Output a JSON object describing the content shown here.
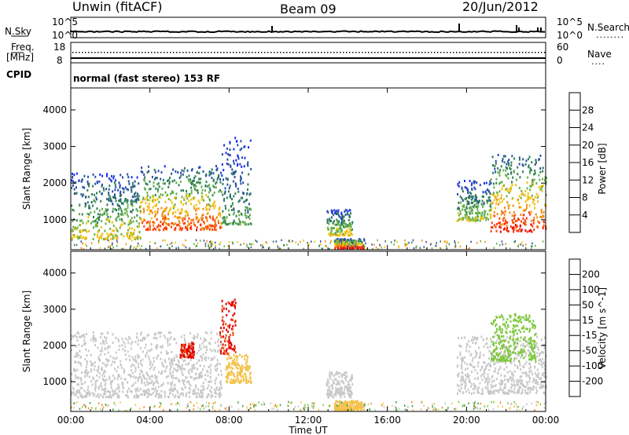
{
  "header": {
    "radar": "Unwin (fitACF)",
    "beam": "Beam 09",
    "date": "20/Jun/2012"
  },
  "top_panel": {
    "left_label": "N.Sky",
    "left_top_tick": "10^5",
    "left_bottom_tick": "10^0",
    "right_label": "N.Search",
    "right_top_tick": "10^5",
    "right_bottom_tick": "10^0",
    "right_legend_mark": "........"
  },
  "freq_panel": {
    "label_line1": "Freq.",
    "label_line2": "[MHz]",
    "left_top_tick": "18",
    "left_bottom_tick": "8",
    "right_label": "Nave",
    "right_top_tick": "60",
    "right_bottom_tick": "0",
    "right_legend_mark": "...."
  },
  "cpid_panel": {
    "label": "CPID",
    "mode": "normal (fast stereo) 153 RF"
  },
  "x_axis": {
    "title": "Time UT",
    "ticks": [
      "00:00",
      "04:00",
      "08:00",
      "12:00",
      "16:00",
      "20:00",
      "00:00"
    ]
  },
  "colors": {
    "power_scale": [
      "#1a2bff",
      "#2b4fa8",
      "#2f7e55",
      "#63b04a",
      "#f2c00f",
      "#f08a10",
      "#ff3a10",
      "#e30000"
    ],
    "velocity_scale": [
      "#e00000",
      "#f04a10",
      "#f08a10",
      "#f3c24a",
      "#c8c8c8",
      "#80c840",
      "#3f9e3f",
      "#2b54a8",
      "#1a2bff"
    ],
    "ground_scatter": "#c8c8c8"
  },
  "chart_data": [
    {
      "type": "heatmap",
      "panel": "power",
      "xlabel": "",
      "ylabel": "Slant Range [km]",
      "x_range_hours": [
        0,
        24
      ],
      "yticks": [
        1000,
        2000,
        3000,
        4000
      ],
      "ylim": [
        180,
        4600
      ],
      "colorbar": {
        "label": "Power [dB]",
        "ticks": [
          "4",
          "8",
          "12",
          "16",
          "20",
          "24",
          "28"
        ],
        "range": [
          0,
          32
        ]
      },
      "echo_regions": [
        {
          "t_start": 0.0,
          "t_end": 3.5,
          "range_low": 500,
          "range_high": 2300,
          "core_dB": 18
        },
        {
          "t_start": 3.5,
          "t_end": 7.6,
          "range_low": 750,
          "range_high": 2500,
          "core_dB": 26
        },
        {
          "t_start": 7.6,
          "t_end": 9.1,
          "range_low": 900,
          "range_high": 3300,
          "core_dB": 12
        },
        {
          "t_start": 12.9,
          "t_end": 14.2,
          "range_low": 600,
          "range_high": 1300,
          "core_dB": 18
        },
        {
          "t_start": 13.3,
          "t_end": 14.8,
          "range_low": 250,
          "range_high": 500,
          "core_dB": 28
        },
        {
          "t_start": 19.5,
          "t_end": 21.2,
          "range_low": 1000,
          "range_high": 2100,
          "core_dB": 16
        },
        {
          "t_start": 21.2,
          "t_end": 24.0,
          "range_low": 700,
          "range_high": 2800,
          "core_dB": 28
        }
      ]
    },
    {
      "type": "heatmap",
      "panel": "velocity",
      "xlabel": "Time UT",
      "ylabel": "Slant Range [km]",
      "x_range_hours": [
        0,
        24
      ],
      "yticks": [
        1000,
        2000,
        3000,
        4000
      ],
      "ylim": [
        180,
        4600
      ],
      "colorbar": {
        "label": "Velocity [m s^-1]",
        "ticks": [
          "-200",
          "-100",
          "-50",
          "-15",
          "15",
          "50",
          "100",
          "200"
        ],
        "range": [
          -250,
          250
        ]
      },
      "echo_regions": [
        {
          "t_start": 0.0,
          "t_end": 7.6,
          "range_low": 600,
          "range_high": 2400,
          "velocity": 0,
          "note": "ground scatter"
        },
        {
          "t_start": 5.5,
          "t_end": 6.2,
          "range_low": 1700,
          "range_high": 2100,
          "velocity": -200
        },
        {
          "t_start": 7.5,
          "t_end": 8.3,
          "range_low": 1800,
          "range_high": 3300,
          "velocity": -200
        },
        {
          "t_start": 7.8,
          "t_end": 9.1,
          "range_low": 1000,
          "range_high": 1800,
          "velocity": -50
        },
        {
          "t_start": 12.9,
          "t_end": 14.2,
          "range_low": 600,
          "range_high": 1300,
          "velocity": 0
        },
        {
          "t_start": 13.3,
          "t_end": 14.8,
          "range_low": 250,
          "range_high": 500,
          "velocity": -50
        },
        {
          "t_start": 19.5,
          "t_end": 24.0,
          "range_low": 700,
          "range_high": 2300,
          "velocity": 0,
          "note": "ground scatter"
        },
        {
          "t_start": 21.2,
          "t_end": 23.5,
          "range_low": 1600,
          "range_high": 2900,
          "velocity": 50
        }
      ]
    }
  ]
}
